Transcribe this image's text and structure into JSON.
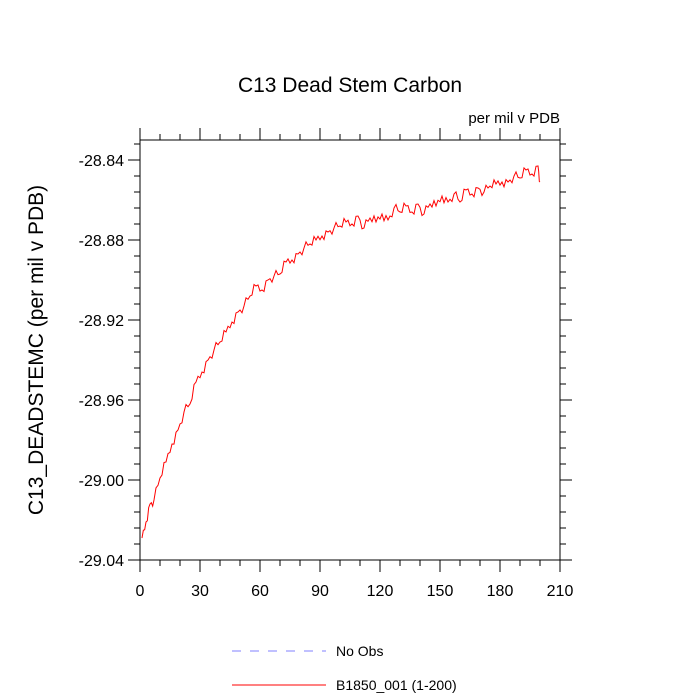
{
  "chart_data": {
    "type": "line",
    "title": "C13 Dead Stem Carbon",
    "units_label": "per mil v PDB",
    "ylabel": "C13_DEADSTEMC  (per mil v PDB)",
    "xlabel": "",
    "xlim": [
      0,
      210
    ],
    "ylim": [
      -29.04,
      -28.83
    ],
    "xticks": [
      0,
      30,
      60,
      90,
      120,
      150,
      180,
      210
    ],
    "xtick_labels": [
      "0",
      "30",
      "60",
      "90",
      "120",
      "150",
      "180",
      "210"
    ],
    "yticks": [
      -29.04,
      -29.0,
      -28.96,
      -28.92,
      -28.88,
      -28.84
    ],
    "ytick_labels": [
      "-29.04",
      "-29.00",
      "-28.96",
      "-28.92",
      "-28.88",
      "-28.84"
    ],
    "series": [
      {
        "name": "B1850_001 (1-200)",
        "color": "#ff0000",
        "style": "solid",
        "x": [
          1,
          3,
          5,
          7,
          10,
          13,
          16,
          19,
          22,
          25,
          28,
          31,
          34,
          37,
          40,
          43,
          46,
          49,
          52,
          55,
          58,
          61,
          64,
          67,
          70,
          73,
          76,
          79,
          82,
          85,
          88,
          91,
          94,
          97,
          100,
          103,
          106,
          109,
          112,
          115,
          118,
          121,
          124,
          127,
          130,
          133,
          136,
          139,
          142,
          145,
          148,
          151,
          154,
          157,
          160,
          163,
          166,
          169,
          172,
          175,
          178,
          181,
          184,
          187,
          190,
          193,
          196,
          199,
          200
        ],
        "values": [
          -29.029,
          -29.021,
          -29.012,
          -29.01,
          -28.999,
          -28.991,
          -28.982,
          -28.975,
          -28.966,
          -28.962,
          -28.951,
          -28.946,
          -28.94,
          -28.935,
          -28.931,
          -28.926,
          -28.921,
          -28.916,
          -28.913,
          -28.908,
          -28.903,
          -28.905,
          -28.9,
          -28.898,
          -28.897,
          -28.891,
          -28.89,
          -28.887,
          -28.884,
          -28.882,
          -28.88,
          -28.878,
          -28.876,
          -28.874,
          -28.873,
          -28.871,
          -28.872,
          -28.868,
          -28.874,
          -28.869,
          -28.871,
          -28.867,
          -28.87,
          -28.864,
          -28.866,
          -28.863,
          -28.866,
          -28.862,
          -28.867,
          -28.862,
          -28.863,
          -28.858,
          -28.861,
          -28.857,
          -28.861,
          -28.855,
          -28.857,
          -28.854,
          -28.856,
          -28.853,
          -28.852,
          -28.851,
          -28.851,
          -28.848,
          -28.849,
          -28.845,
          -28.847,
          -28.843,
          -28.851
        ]
      },
      {
        "name": "No Obs",
        "color": "#8080ff",
        "style": "dashed",
        "x": [],
        "values": []
      }
    ]
  }
}
